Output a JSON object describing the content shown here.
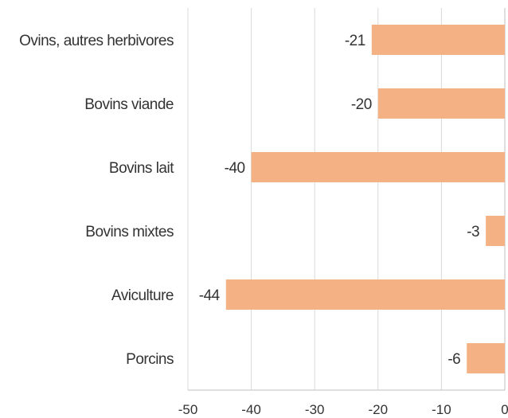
{
  "chart_data": {
    "type": "bar",
    "orientation": "horizontal",
    "categories": [
      "Ovins, autres herbivores",
      "Bovins viande",
      "Bovins lait",
      "Bovins mixtes",
      "Aviculture",
      "Porcins"
    ],
    "values": [
      -21,
      -20,
      -40,
      -3,
      -44,
      -6
    ],
    "data_labels": [
      "-21",
      "-20",
      "-40",
      "-3",
      "-44",
      "-6"
    ],
    "xlim": [
      -50,
      0
    ],
    "xticks": [
      -50,
      -40,
      -30,
      -20,
      -10,
      0
    ],
    "xtick_labels": [
      "-50",
      "-40",
      "-30",
      "-20",
      "-10",
      "0"
    ],
    "grid": "vertical",
    "bar_color": "#f4b183",
    "title": "",
    "xlabel": "",
    "ylabel": ""
  }
}
